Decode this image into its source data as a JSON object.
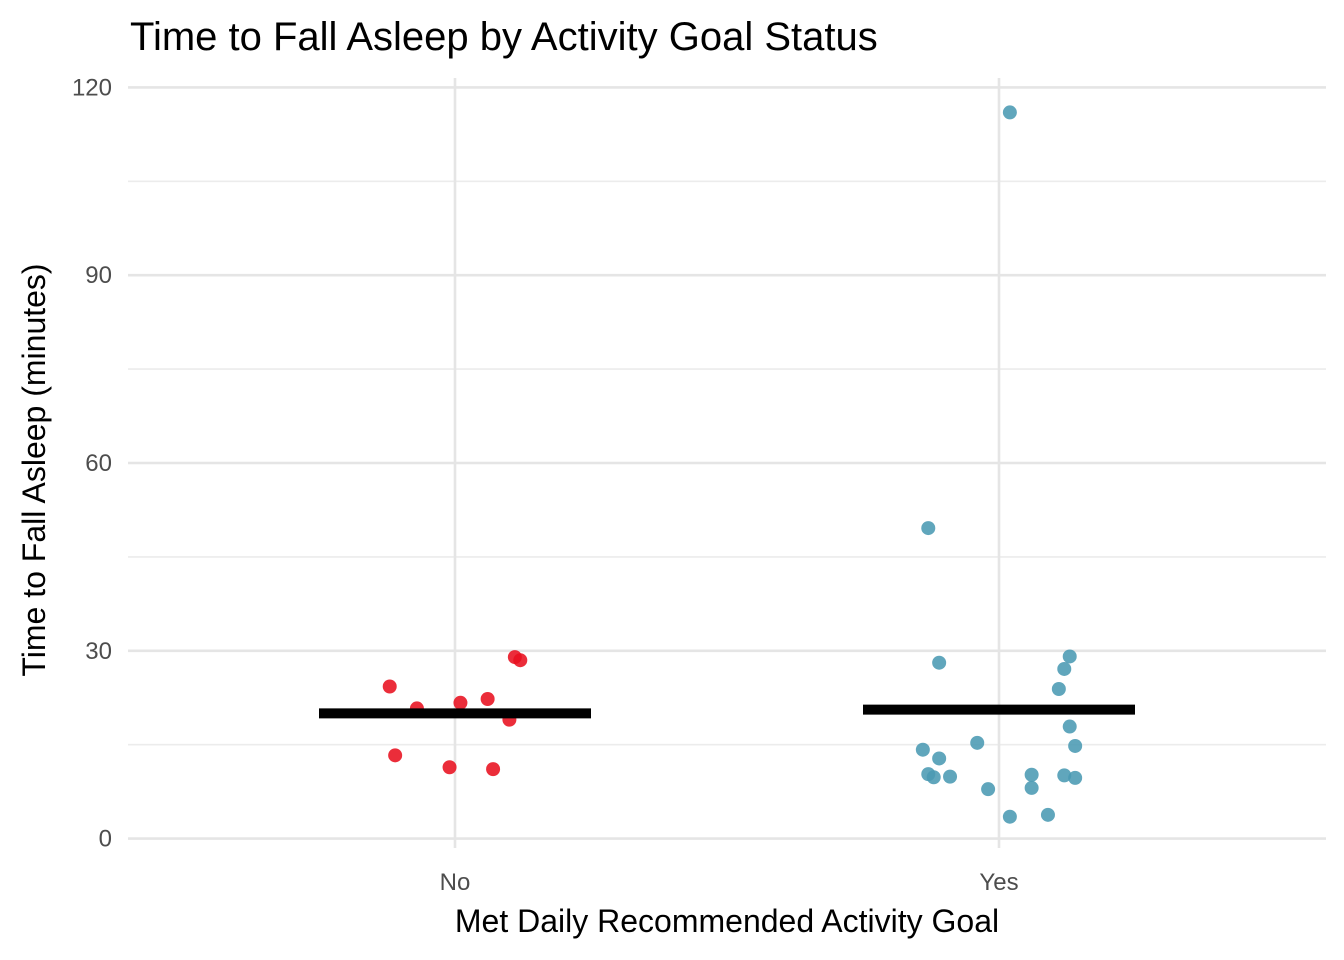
{
  "chart_data": {
    "type": "scatter",
    "title": "Time to Fall Asleep by Activity Goal Status",
    "xlabel": "Met Daily Recommended Activity Goal",
    "ylabel": "Time to Fall Asleep (minutes)",
    "categories": [
      "No",
      "Yes"
    ],
    "ylim": [
      -1.5,
      121.5
    ],
    "yticks": [
      0,
      30,
      60,
      90,
      120
    ],
    "y_minor_ticks": [
      15,
      45,
      75,
      105
    ],
    "grid": true,
    "legend": "none",
    "series": [
      {
        "category": "No",
        "color": "#e8101f",
        "points": [
          {
            "jitter": -0.12,
            "y": 24.3
          },
          {
            "jitter": -0.07,
            "y": 20.8
          },
          {
            "jitter": 0.01,
            "y": 21.7
          },
          {
            "jitter": 0.06,
            "y": 22.3
          },
          {
            "jitter": 0.11,
            "y": 29.0
          },
          {
            "jitter": 0.12,
            "y": 28.5
          },
          {
            "jitter": 0.1,
            "y": 19.0
          },
          {
            "jitter": -0.11,
            "y": 13.3
          },
          {
            "jitter": -0.01,
            "y": 11.4
          },
          {
            "jitter": 0.07,
            "y": 11.1
          }
        ],
        "mean": 20.0
      },
      {
        "category": "Yes",
        "color": "#4a9ab3",
        "points": [
          {
            "jitter": 0.02,
            "y": 116.0
          },
          {
            "jitter": -0.13,
            "y": 49.6
          },
          {
            "jitter": -0.11,
            "y": 28.1
          },
          {
            "jitter": 0.13,
            "y": 29.1
          },
          {
            "jitter": 0.12,
            "y": 27.1
          },
          {
            "jitter": 0.11,
            "y": 23.9
          },
          {
            "jitter": 0.13,
            "y": 17.9
          },
          {
            "jitter": 0.14,
            "y": 14.8
          },
          {
            "jitter": -0.04,
            "y": 15.3
          },
          {
            "jitter": -0.14,
            "y": 14.2
          },
          {
            "jitter": -0.11,
            "y": 12.8
          },
          {
            "jitter": -0.13,
            "y": 10.3
          },
          {
            "jitter": -0.12,
            "y": 9.8
          },
          {
            "jitter": -0.09,
            "y": 9.9
          },
          {
            "jitter": 0.06,
            "y": 10.2
          },
          {
            "jitter": 0.12,
            "y": 10.1
          },
          {
            "jitter": 0.14,
            "y": 9.7
          },
          {
            "jitter": -0.02,
            "y": 7.9
          },
          {
            "jitter": 0.06,
            "y": 8.1
          },
          {
            "jitter": 0.02,
            "y": 3.5
          },
          {
            "jitter": 0.09,
            "y": 3.8
          }
        ],
        "mean": 20.6
      }
    ]
  }
}
